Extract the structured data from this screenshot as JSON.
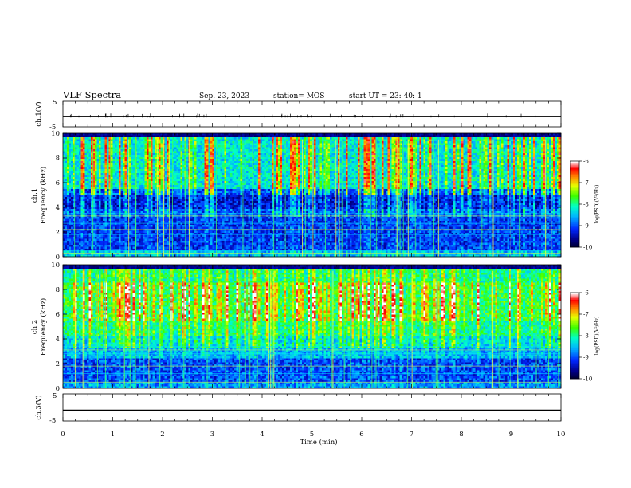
{
  "header": {
    "title": "VLF Spectra",
    "date": "Sep. 23, 2023",
    "station": "station= MOS",
    "start_ut": "start  UT  =   23: 40: 1"
  },
  "colorbar": {
    "label": "log(PSD)(V²/Hz)",
    "ticks": [
      "-6",
      "-7",
      "-8",
      "-9",
      "-10"
    ],
    "colors": [
      "#e8ffff",
      "#ff0000",
      "#ffff00",
      "#00ff00",
      "#00ffff",
      "#0000ff",
      "#000033"
    ]
  },
  "chart_data": [
    {
      "type": "line",
      "panel": "ch1-waveform",
      "ylabel": "ch.1(V)",
      "yticks": [
        "5",
        "-5"
      ],
      "ylim": [
        -5,
        5
      ],
      "x": [
        0,
        10
      ],
      "values": [
        -1,
        -1
      ]
    },
    {
      "type": "heatmap",
      "panel": "ch1-spectrogram",
      "ylabel": "ch.1\nFrequency (kHz)",
      "ylabel_lines": [
        "ch.1",
        "Frequency (kHz)"
      ],
      "yticks": [
        "10",
        "8",
        "6",
        "4",
        "2",
        "0"
      ],
      "ylim": [
        0,
        10
      ],
      "xlim": [
        0,
        10
      ],
      "z_range": [
        -10,
        -6
      ]
    },
    {
      "type": "heatmap",
      "panel": "ch2-spectrogram",
      "ylabel_lines": [
        "ch.2",
        "Frequency (kHz)"
      ],
      "yticks": [
        "10",
        "8",
        "6",
        "4",
        "2",
        "0"
      ],
      "ylim": [
        0,
        10
      ],
      "xlim": [
        0,
        10
      ],
      "z_range": [
        -10,
        -6
      ]
    },
    {
      "type": "line",
      "panel": "ch3-waveform",
      "ylabel": "ch.3(V)",
      "yticks": [
        "5",
        "-5"
      ],
      "ylim": [
        -5,
        5
      ],
      "x": [
        0,
        10
      ],
      "values": [
        -1,
        -1
      ]
    }
  ],
  "xaxis": {
    "label": "Time  (min)",
    "ticks": [
      "0",
      "1",
      "2",
      "3",
      "4",
      "5",
      "6",
      "7",
      "8",
      "9",
      "10"
    ],
    "xlim": [
      0,
      10
    ]
  }
}
